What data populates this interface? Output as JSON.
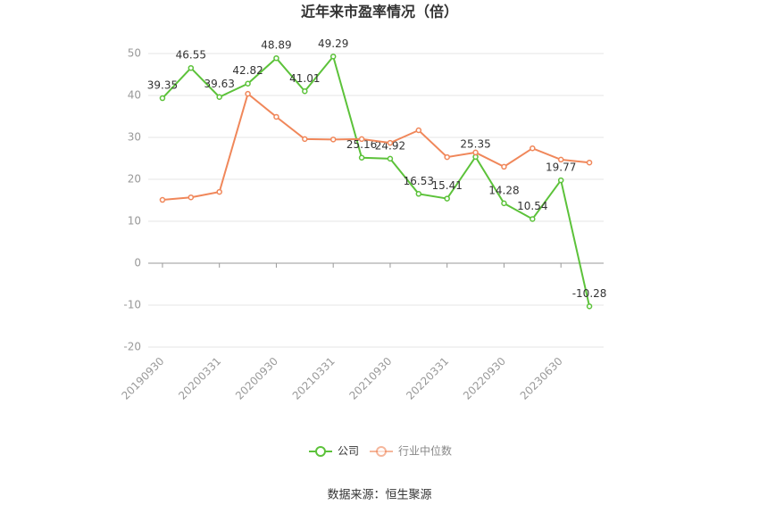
{
  "chart_data": {
    "type": "line",
    "title": "近年来市盈率情况（倍）",
    "source": "数据来源：恒生聚源",
    "categories": [
      "20190930",
      null,
      "20200331",
      null,
      "20200930",
      null,
      "20210331",
      null,
      "20210930",
      null,
      "20220331",
      null,
      "20220930",
      null,
      "20230630",
      null
    ],
    "series": [
      {
        "name": "公司",
        "color": "#5cc23a",
        "labels": true,
        "values": [
          39.35,
          46.55,
          39.63,
          42.82,
          48.89,
          41.01,
          49.29,
          25.16,
          24.92,
          16.53,
          15.41,
          25.35,
          14.28,
          10.54,
          19.77,
          -10.28
        ]
      },
      {
        "name": "行业中位数",
        "color": "#f0875a",
        "labels": false,
        "values": [
          15.1,
          15.7,
          17.0,
          40.4,
          34.9,
          29.6,
          29.5,
          29.6,
          28.7,
          31.7,
          25.3,
          26.4,
          23.0,
          27.4,
          24.7,
          24.0
        ]
      }
    ],
    "ylim": [
      -20,
      50
    ],
    "yticks": [
      -20,
      -10,
      0,
      10,
      20,
      30,
      40,
      50
    ],
    "grid": true,
    "legend": "bottom"
  }
}
